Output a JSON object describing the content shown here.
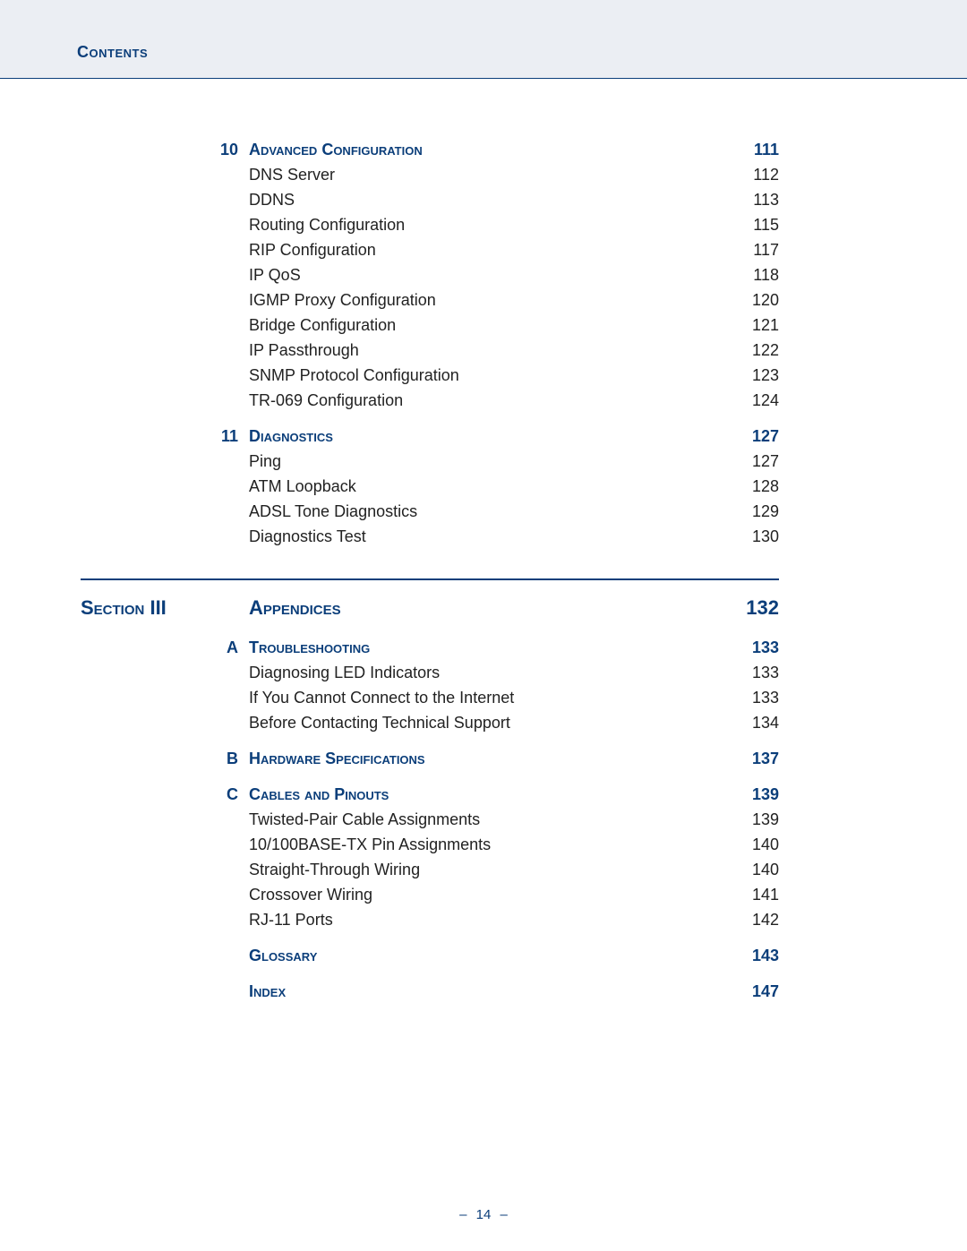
{
  "colors": {
    "accent": "#0b3e7a",
    "header_bg": "#ebeef3",
    "body_text": "#222222",
    "page_bg": "#ffffff"
  },
  "header": {
    "title": "Contents"
  },
  "footer": {
    "page_number": "14",
    "dash": "–"
  },
  "toc": {
    "pre_section_chapters": [
      {
        "number": "10",
        "title": "Advanced Configuration",
        "page": "111",
        "entries": [
          {
            "title": "DNS Server",
            "page": "112"
          },
          {
            "title": "DDNS",
            "page": "113"
          },
          {
            "title": "Routing Configuration",
            "page": "115"
          },
          {
            "title": "RIP Configuration",
            "page": "117"
          },
          {
            "title": "IP QoS",
            "page": "118"
          },
          {
            "title": "IGMP Proxy Configuration",
            "page": "120"
          },
          {
            "title": "Bridge Configuration",
            "page": "121"
          },
          {
            "title": "IP Passthrough",
            "page": "122"
          },
          {
            "title": "SNMP Protocol Configuration",
            "page": "123"
          },
          {
            "title": "TR-069 Configuration",
            "page": "124"
          }
        ]
      },
      {
        "number": "11",
        "title": "Diagnostics",
        "page": "127",
        "entries": [
          {
            "title": "Ping",
            "page": "127"
          },
          {
            "title": "ATM Loopback",
            "page": "128"
          },
          {
            "title": "ADSL Tone Diagnostics",
            "page": "129"
          },
          {
            "title": "Diagnostics Test",
            "page": "130"
          }
        ]
      }
    ],
    "section": {
      "label": "Section III",
      "title": "Appendices",
      "page": "132"
    },
    "post_section_chapters": [
      {
        "number": "A",
        "title": "Troubleshooting",
        "page": "133",
        "entries": [
          {
            "title": "Diagnosing LED Indicators",
            "page": "133"
          },
          {
            "title": "If You Cannot Connect to the Internet",
            "page": "133"
          },
          {
            "title": "Before Contacting Technical Support",
            "page": "134"
          }
        ]
      },
      {
        "number": "B",
        "title": "Hardware Specifications",
        "page": "137",
        "entries": []
      },
      {
        "number": "C",
        "title": "Cables and Pinouts",
        "page": "139",
        "entries": [
          {
            "title": "Twisted-Pair Cable Assignments",
            "page": "139"
          },
          {
            "title": "10/100BASE-TX Pin Assignments",
            "page": "140"
          },
          {
            "title": "Straight-Through Wiring",
            "page": "140"
          },
          {
            "title": "Crossover Wiring",
            "page": "141"
          },
          {
            "title": "RJ-11 Ports",
            "page": "142"
          }
        ]
      },
      {
        "number": "",
        "title": "Glossary",
        "page": "143",
        "entries": []
      },
      {
        "number": "",
        "title": "Index",
        "page": "147",
        "entries": []
      }
    ]
  }
}
